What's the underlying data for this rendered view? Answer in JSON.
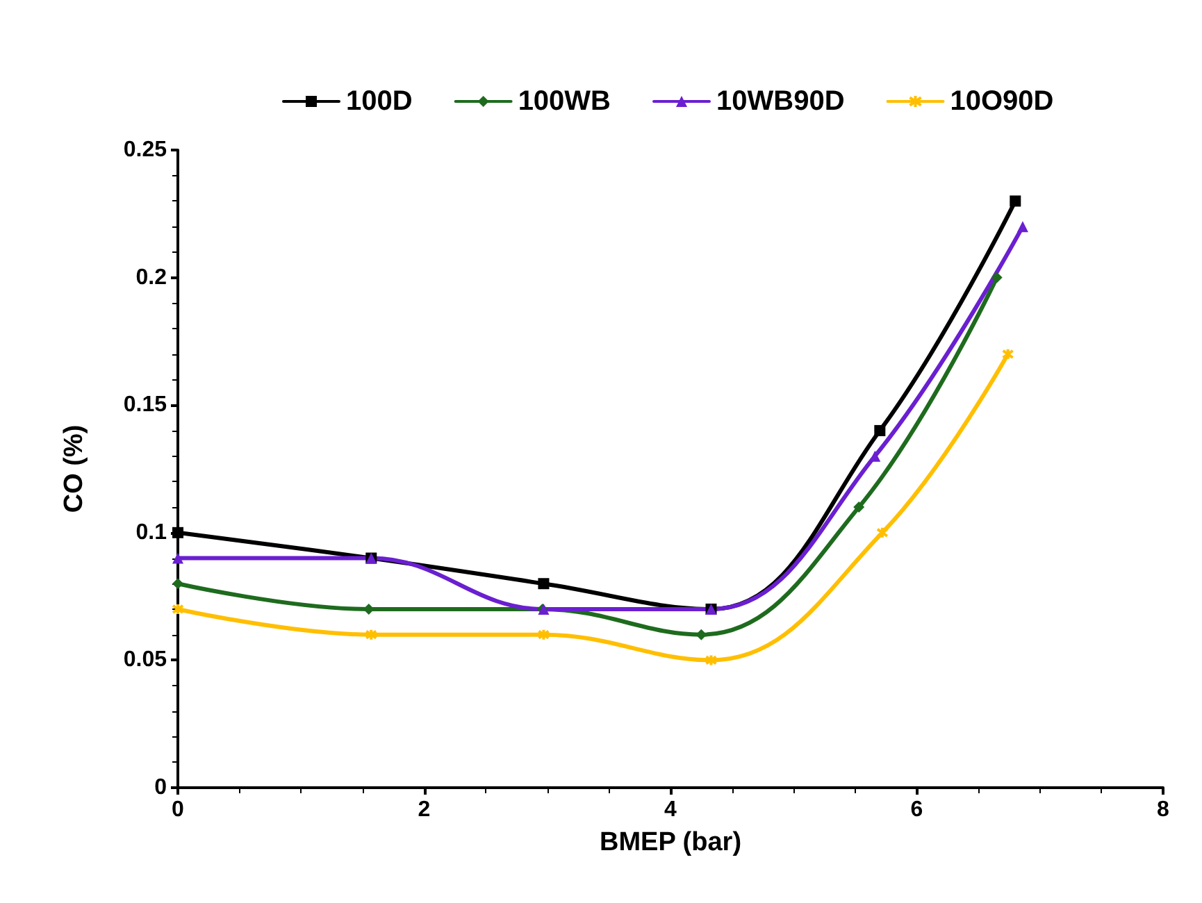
{
  "chart_data": {
    "type": "line",
    "xlabel": "BMEP (bar)",
    "ylabel": "CO (%)",
    "xlim": [
      0,
      8
    ],
    "xticks": [
      0,
      2,
      4,
      6,
      8
    ],
    "ylim": [
      0,
      0.25
    ],
    "yticks": [
      0,
      0.05,
      0.1,
      0.15,
      0.2,
      0.25
    ],
    "grid": false,
    "legend": "top",
    "series": [
      {
        "name": "100D",
        "color": "#000000",
        "marker": "square",
        "x": [
          0,
          1.57,
          2.97,
          4.33,
          5.7,
          6.8
        ],
        "values": [
          0.1,
          0.09,
          0.08,
          0.07,
          0.14,
          0.23
        ]
      },
      {
        "name": "100WB",
        "color": "#1e6b1e",
        "marker": "diamond",
        "x": [
          0,
          1.55,
          2.96,
          4.25,
          5.53,
          6.65
        ],
        "values": [
          0.08,
          0.07,
          0.07,
          0.06,
          0.11,
          0.2
        ]
      },
      {
        "name": "10WB90D",
        "color": "#6a1fd0",
        "marker": "triangle",
        "x": [
          0,
          1.57,
          2.97,
          4.33,
          5.66,
          6.86
        ],
        "values": [
          0.09,
          0.09,
          0.07,
          0.07,
          0.13,
          0.22
        ]
      },
      {
        "name": "10O90D",
        "color": "#ffbf00",
        "marker": "cross",
        "x": [
          0,
          1.57,
          2.97,
          4.33,
          5.72,
          6.74
        ],
        "values": [
          0.07,
          0.06,
          0.06,
          0.05,
          0.1,
          0.17
        ]
      }
    ]
  }
}
